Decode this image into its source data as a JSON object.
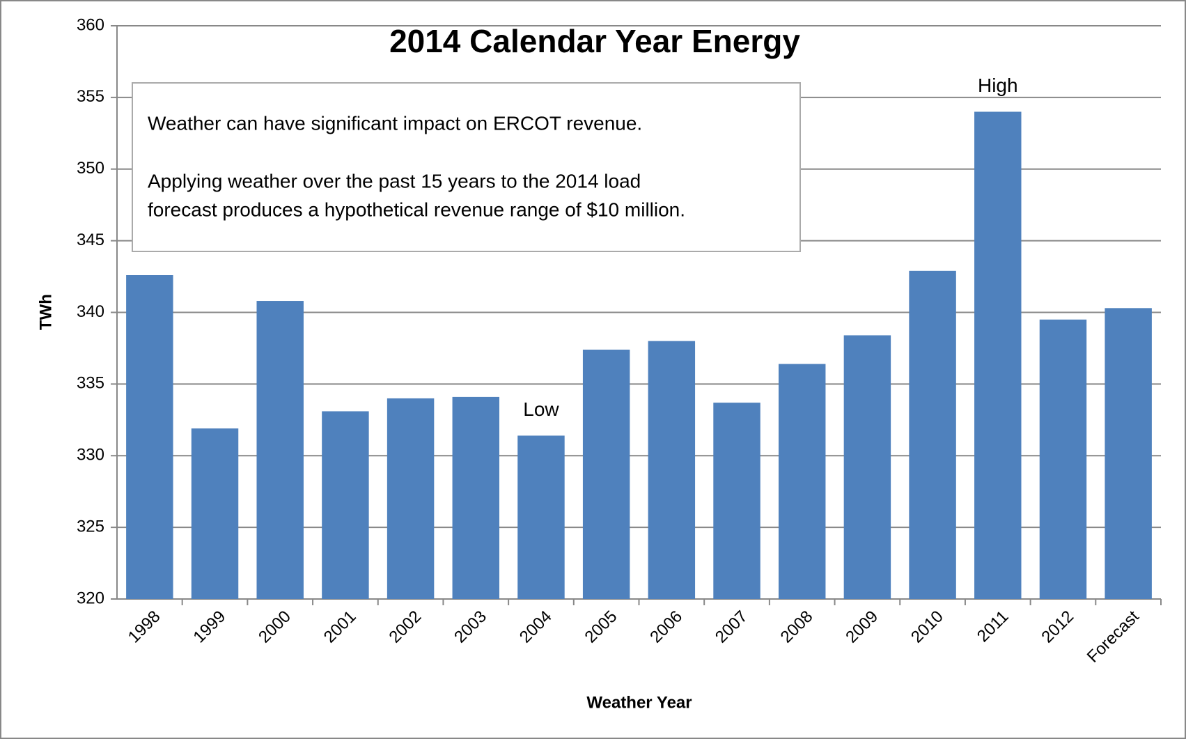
{
  "chart_data": {
    "type": "bar",
    "title": "2014 Calendar Year Energy",
    "x_label": "Weather Year",
    "y_label": "TWh",
    "categories": [
      "1998",
      "1999",
      "2000",
      "2001",
      "2002",
      "2003",
      "2004",
      "2005",
      "2006",
      "2007",
      "2008",
      "2009",
      "2010",
      "2011",
      "2012",
      "Forecast"
    ],
    "values": [
      342.6,
      331.9,
      340.8,
      333.1,
      334.0,
      334.1,
      331.4,
      337.4,
      338.0,
      333.7,
      336.4,
      338.4,
      342.9,
      354.0,
      339.5,
      340.3
    ],
    "color": "#4f81bd",
    "ylim": [
      320,
      360
    ],
    "yticks": [
      320,
      325,
      330,
      335,
      340,
      345,
      350,
      355,
      360
    ],
    "grid": true,
    "annotations": [
      {
        "text": "Low",
        "category": 6
      },
      {
        "text": "High",
        "category": 13
      }
    ],
    "text_box": [
      "Weather can have significant impact on ERCOT revenue.",
      "Applying  weather over the past 15 years to the 2014 load",
      "forecast produces a hypothetical revenue range of $10 million."
    ]
  }
}
